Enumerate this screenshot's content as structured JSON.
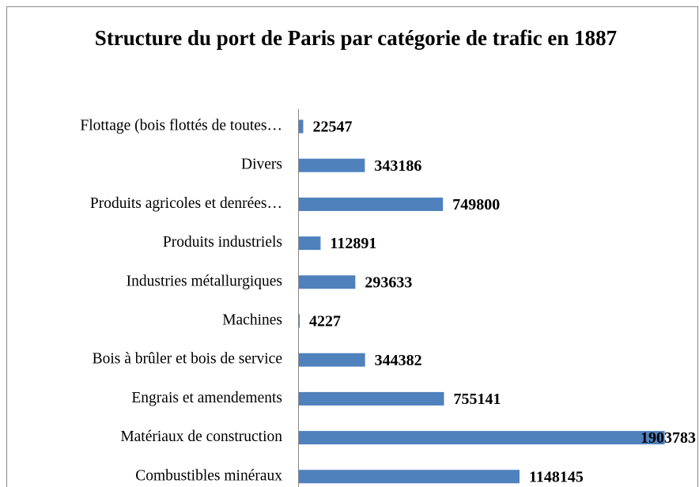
{
  "chart_data": {
    "type": "barh",
    "title": "Structure du port de Paris par catégorie de trafic en 1887",
    "categories": [
      "Flottage (bois flottés de toutes…",
      "Divers",
      "Produits agricoles et denrées…",
      "Produits industriels",
      "Industries métallurgiques",
      "Machines",
      "Bois à brûler et bois de service",
      "Engrais et amendements",
      "Matériaux de construction",
      "Combustibles minéraux"
    ],
    "values": [
      22547,
      343186,
      749800,
      112891,
      293633,
      4227,
      344382,
      755141,
      1903783,
      1148145
    ],
    "color": "#4f81bd",
    "xlim": [
      0,
      2000000
    ]
  }
}
